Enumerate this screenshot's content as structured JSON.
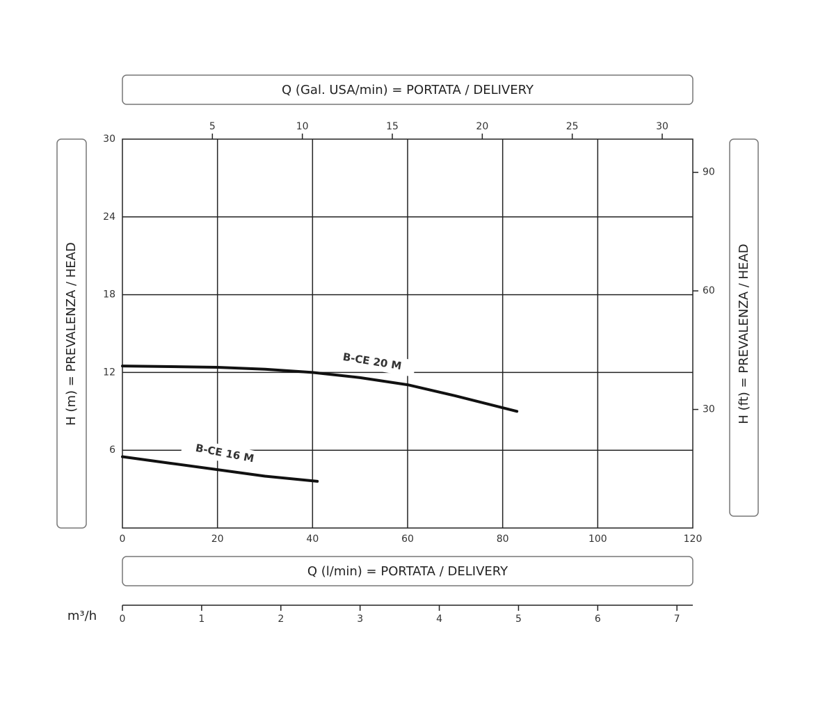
{
  "chart_data": {
    "type": "line",
    "x_label": "Q (l/min) = PORTATA / DELIVERY",
    "y_label": "H (m) = PREVALENZA / HEAD",
    "x2_label": "Q (Gal. USA/min) = PORTATA / DELIVERY",
    "y2_label": "H (ft) = PREVALENZA / HEAD",
    "x3_label": "m³/h",
    "xlim": [
      0,
      120
    ],
    "xticks": [
      0,
      20,
      40,
      60,
      80,
      100,
      120
    ],
    "ylim": [
      0,
      30
    ],
    "yticks": [
      6,
      12,
      18,
      24,
      30
    ],
    "x2lim": [
      0,
      31.7
    ],
    "x2ticks": [
      5,
      10,
      15,
      20,
      25,
      30
    ],
    "y2lim": [
      0,
      98.4
    ],
    "y2ticks": [
      30,
      60,
      90
    ],
    "x3lim": [
      0,
      7.2
    ],
    "x3ticks": [
      0,
      1,
      2,
      3,
      4,
      5,
      6,
      7
    ],
    "grid": true,
    "series": [
      {
        "name": "B-CE 20 M",
        "color": "#111111",
        "x": [
          0,
          20,
          30,
          40,
          50,
          60,
          70,
          83
        ],
        "values": [
          12.5,
          12.4,
          12.25,
          12.0,
          11.6,
          11.05,
          10.2,
          9.0
        ]
      },
      {
        "name": "B-CE 16 M",
        "color": "#111111",
        "x": [
          0,
          10,
          20,
          30,
          41
        ],
        "values": [
          5.5,
          5.0,
          4.5,
          4.0,
          3.6
        ]
      }
    ]
  }
}
